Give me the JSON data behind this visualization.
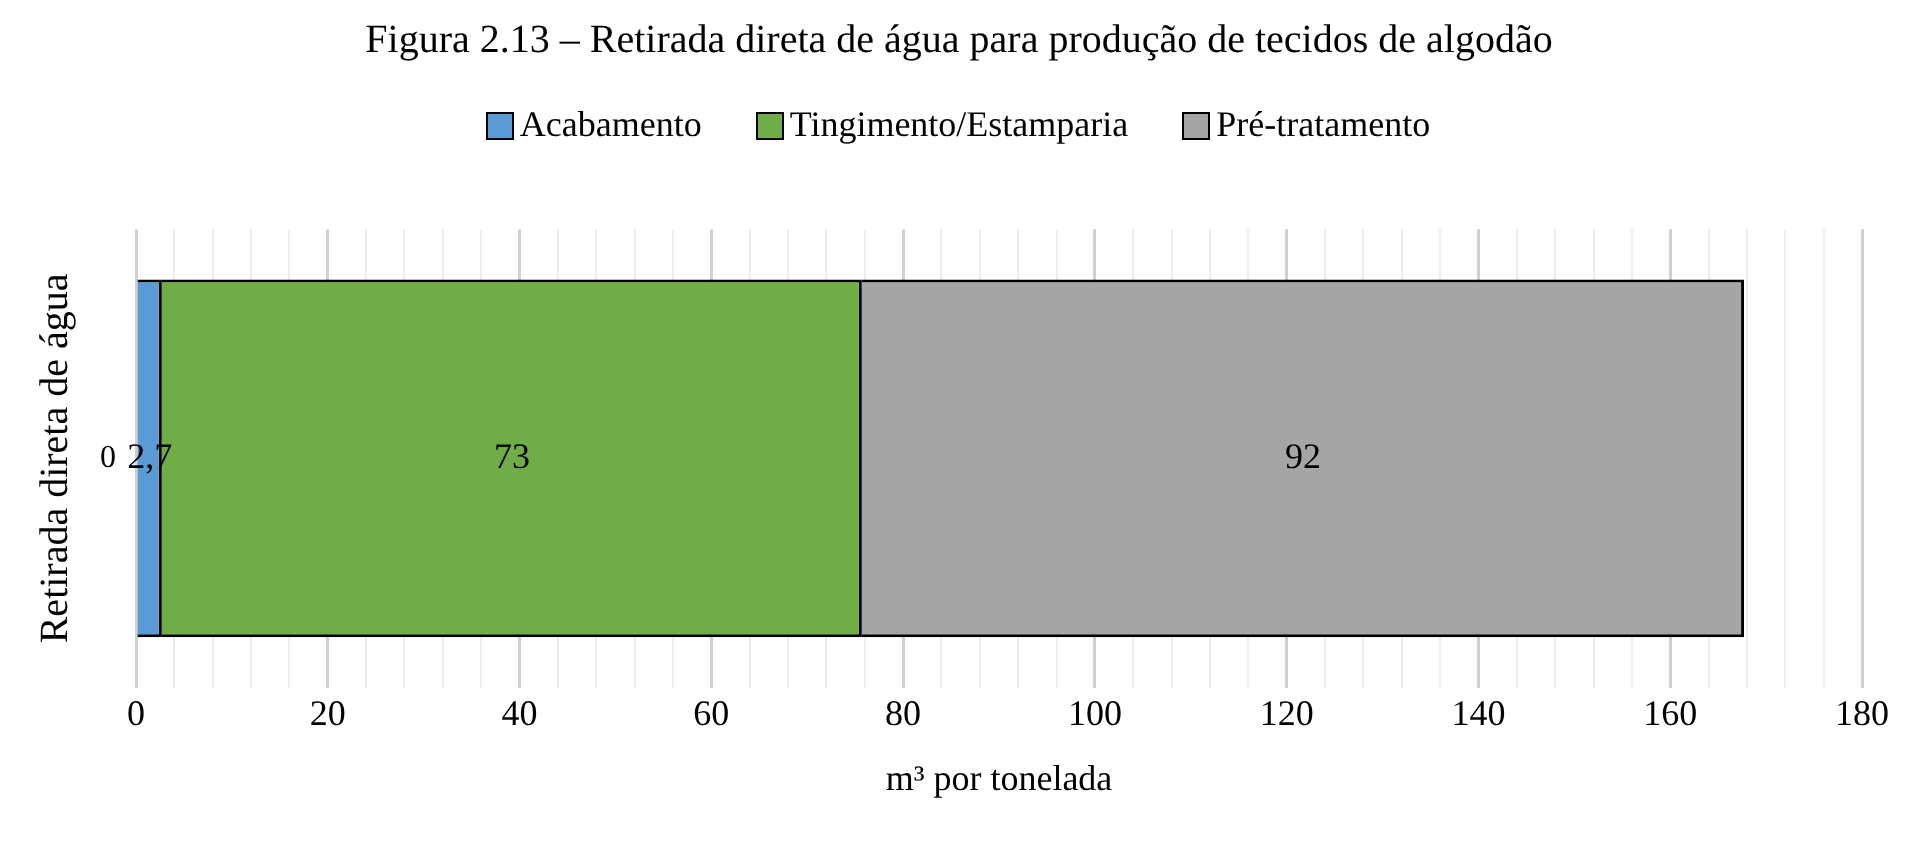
{
  "chart_data": {
    "type": "bar",
    "orientation": "horizontal",
    "stacked": true,
    "title": "Figura 2.13 – Retirada direta de água para produção de tecidos de algodão",
    "xlabel": "m³ por tonelada",
    "ylabel": "Retirada direta de água",
    "categories": [
      "0"
    ],
    "series": [
      {
        "name": "Acabamento",
        "color": "#5b9bd5",
        "values": [
          2.7
        ],
        "value_labels": [
          "2,7"
        ]
      },
      {
        "name": "Tingimento/Estamparia",
        "color": "#70ad47",
        "values": [
          73
        ],
        "value_labels": [
          "73"
        ]
      },
      {
        "name": "Pré-tratamento",
        "color": "#a5a5a5",
        "values": [
          92
        ],
        "value_labels": [
          "92"
        ]
      }
    ],
    "xlim": [
      0,
      180
    ],
    "xticks": [
      0,
      {
        "value": 4,
        "label": null
      },
      {
        "value": 8,
        "label": null
      },
      {
        "value": 12,
        "label": null
      },
      {
        "value": 16,
        "label": null
      },
      20,
      {
        "value": 24,
        "label": null
      },
      {
        "value": 28,
        "label": null
      },
      {
        "value": 32,
        "label": null
      },
      {
        "value": 36,
        "label": null
      },
      40,
      {
        "value": 44,
        "label": null
      },
      {
        "value": 48,
        "label": null
      },
      {
        "value": 52,
        "label": null
      },
      {
        "value": 56,
        "label": null
      },
      60,
      {
        "value": 64,
        "label": null
      },
      {
        "value": 68,
        "label": null
      },
      {
        "value": 72,
        "label": null
      },
      {
        "value": 76,
        "label": null
      },
      80,
      {
        "value": 84,
        "label": null
      },
      {
        "value": 88,
        "label": null
      },
      {
        "value": 92,
        "label": null
      },
      {
        "value": 96,
        "label": null
      },
      100,
      {
        "value": 104,
        "label": null
      },
      {
        "value": 108,
        "label": null
      },
      {
        "value": 112,
        "label": null
      },
      {
        "value": 116,
        "label": null
      },
      120,
      {
        "value": 124,
        "label": null
      },
      {
        "value": 128,
        "label": null
      },
      {
        "value": 132,
        "label": null
      },
      {
        "value": 136,
        "label": null
      },
      140,
      {
        "value": 144,
        "label": null
      },
      {
        "value": 148,
        "label": null
      },
      {
        "value": 152,
        "label": null
      },
      {
        "value": 156,
        "label": null
      },
      160,
      {
        "value": 164,
        "label": null
      },
      {
        "value": 168,
        "label": null
      },
      {
        "value": 172,
        "label": null
      },
      {
        "value": 176,
        "label": null
      },
      180
    ],
    "grid": "x",
    "legend": "top"
  }
}
